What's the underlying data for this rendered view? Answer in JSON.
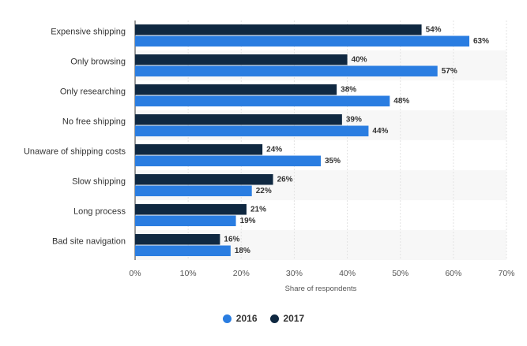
{
  "chart_data": {
    "type": "bar",
    "orientation": "horizontal",
    "categories": [
      "Expensive shipping",
      "Only browsing",
      "Only researching",
      "No free shipping",
      "Unaware of shipping costs",
      "Slow shipping",
      "Long process",
      "Bad site navigation"
    ],
    "series": [
      {
        "name": "2017",
        "color": "#0f2841",
        "values": [
          54,
          40,
          38,
          39,
          24,
          26,
          21,
          16
        ]
      },
      {
        "name": "2016",
        "color": "#2a7de1",
        "values": [
          63,
          57,
          48,
          44,
          35,
          22,
          19,
          18
        ]
      }
    ],
    "value_suffix": "%",
    "xlabel": "Share of respondents",
    "xlim": [
      0,
      70
    ],
    "xticks": [
      0,
      10,
      20,
      30,
      40,
      50,
      60,
      70
    ],
    "xtick_labels": [
      "0%",
      "10%",
      "20%",
      "30%",
      "40%",
      "50%",
      "60%",
      "70%"
    ],
    "grid": true,
    "legend": {
      "position": "bottom-center",
      "items": [
        "2016",
        "2017"
      ]
    }
  }
}
